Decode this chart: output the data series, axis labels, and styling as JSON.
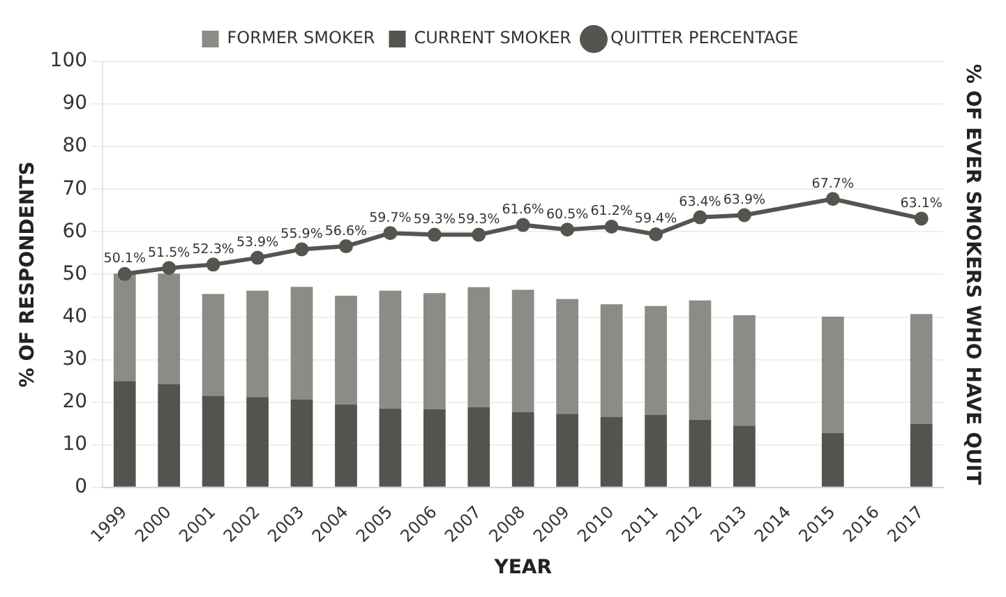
{
  "chart_data": {
    "type": "bar",
    "stacked": true,
    "xlabel": "YEAR",
    "ylabel": "% OF RESPONDENTS",
    "y2label": "% OF EVER SMOKERS WHO HAVE QUIT",
    "categories": [
      "1999",
      "2000",
      "2001",
      "2002",
      "2003",
      "2004",
      "2005",
      "2006",
      "2007",
      "2008",
      "2009",
      "2010",
      "2011",
      "2012",
      "2013",
      "2014",
      "2015",
      "2016",
      "2017"
    ],
    "series": [
      {
        "name": "CURRENT SMOKER",
        "color": "#54544f",
        "values": [
          25.0,
          24.2,
          21.5,
          21.2,
          20.7,
          19.5,
          18.5,
          18.3,
          18.9,
          17.7,
          17.3,
          16.5,
          17.1,
          15.9,
          14.5,
          null,
          12.8,
          null,
          14.9
        ]
      },
      {
        "name": "FORMER SMOKER",
        "color": "#8c8b85",
        "values": [
          25.2,
          26.0,
          23.9,
          25.0,
          26.4,
          25.5,
          27.7,
          27.3,
          28.1,
          28.7,
          26.9,
          26.5,
          25.5,
          28.0,
          25.9,
          null,
          27.3,
          null,
          25.8
        ]
      },
      {
        "name": "QUITTER PERCENTAGE",
        "type": "line",
        "color": "#555550",
        "values": [
          50.1,
          51.5,
          52.3,
          53.9,
          55.9,
          56.6,
          59.7,
          59.3,
          59.3,
          61.6,
          60.5,
          61.2,
          59.4,
          63.4,
          63.9,
          null,
          67.7,
          null,
          63.1
        ],
        "value_labels": [
          "50.1%",
          "51.5%",
          "52.3%",
          "53.9%",
          "55.9%",
          "56.6%",
          "59.7%",
          "59.3%",
          "59.3%",
          "61.6%",
          "60.5%",
          "61.2%",
          "59.4%",
          "63.4%",
          "63.9%",
          null,
          "67.7%",
          null,
          "63.1%"
        ]
      }
    ],
    "ylim": [
      0,
      100
    ],
    "yticks": [
      0,
      10,
      20,
      30,
      40,
      50,
      60,
      70,
      80,
      90,
      100
    ],
    "grid": "y",
    "legend": "top",
    "marker": "circle",
    "line_style": "solid"
  }
}
